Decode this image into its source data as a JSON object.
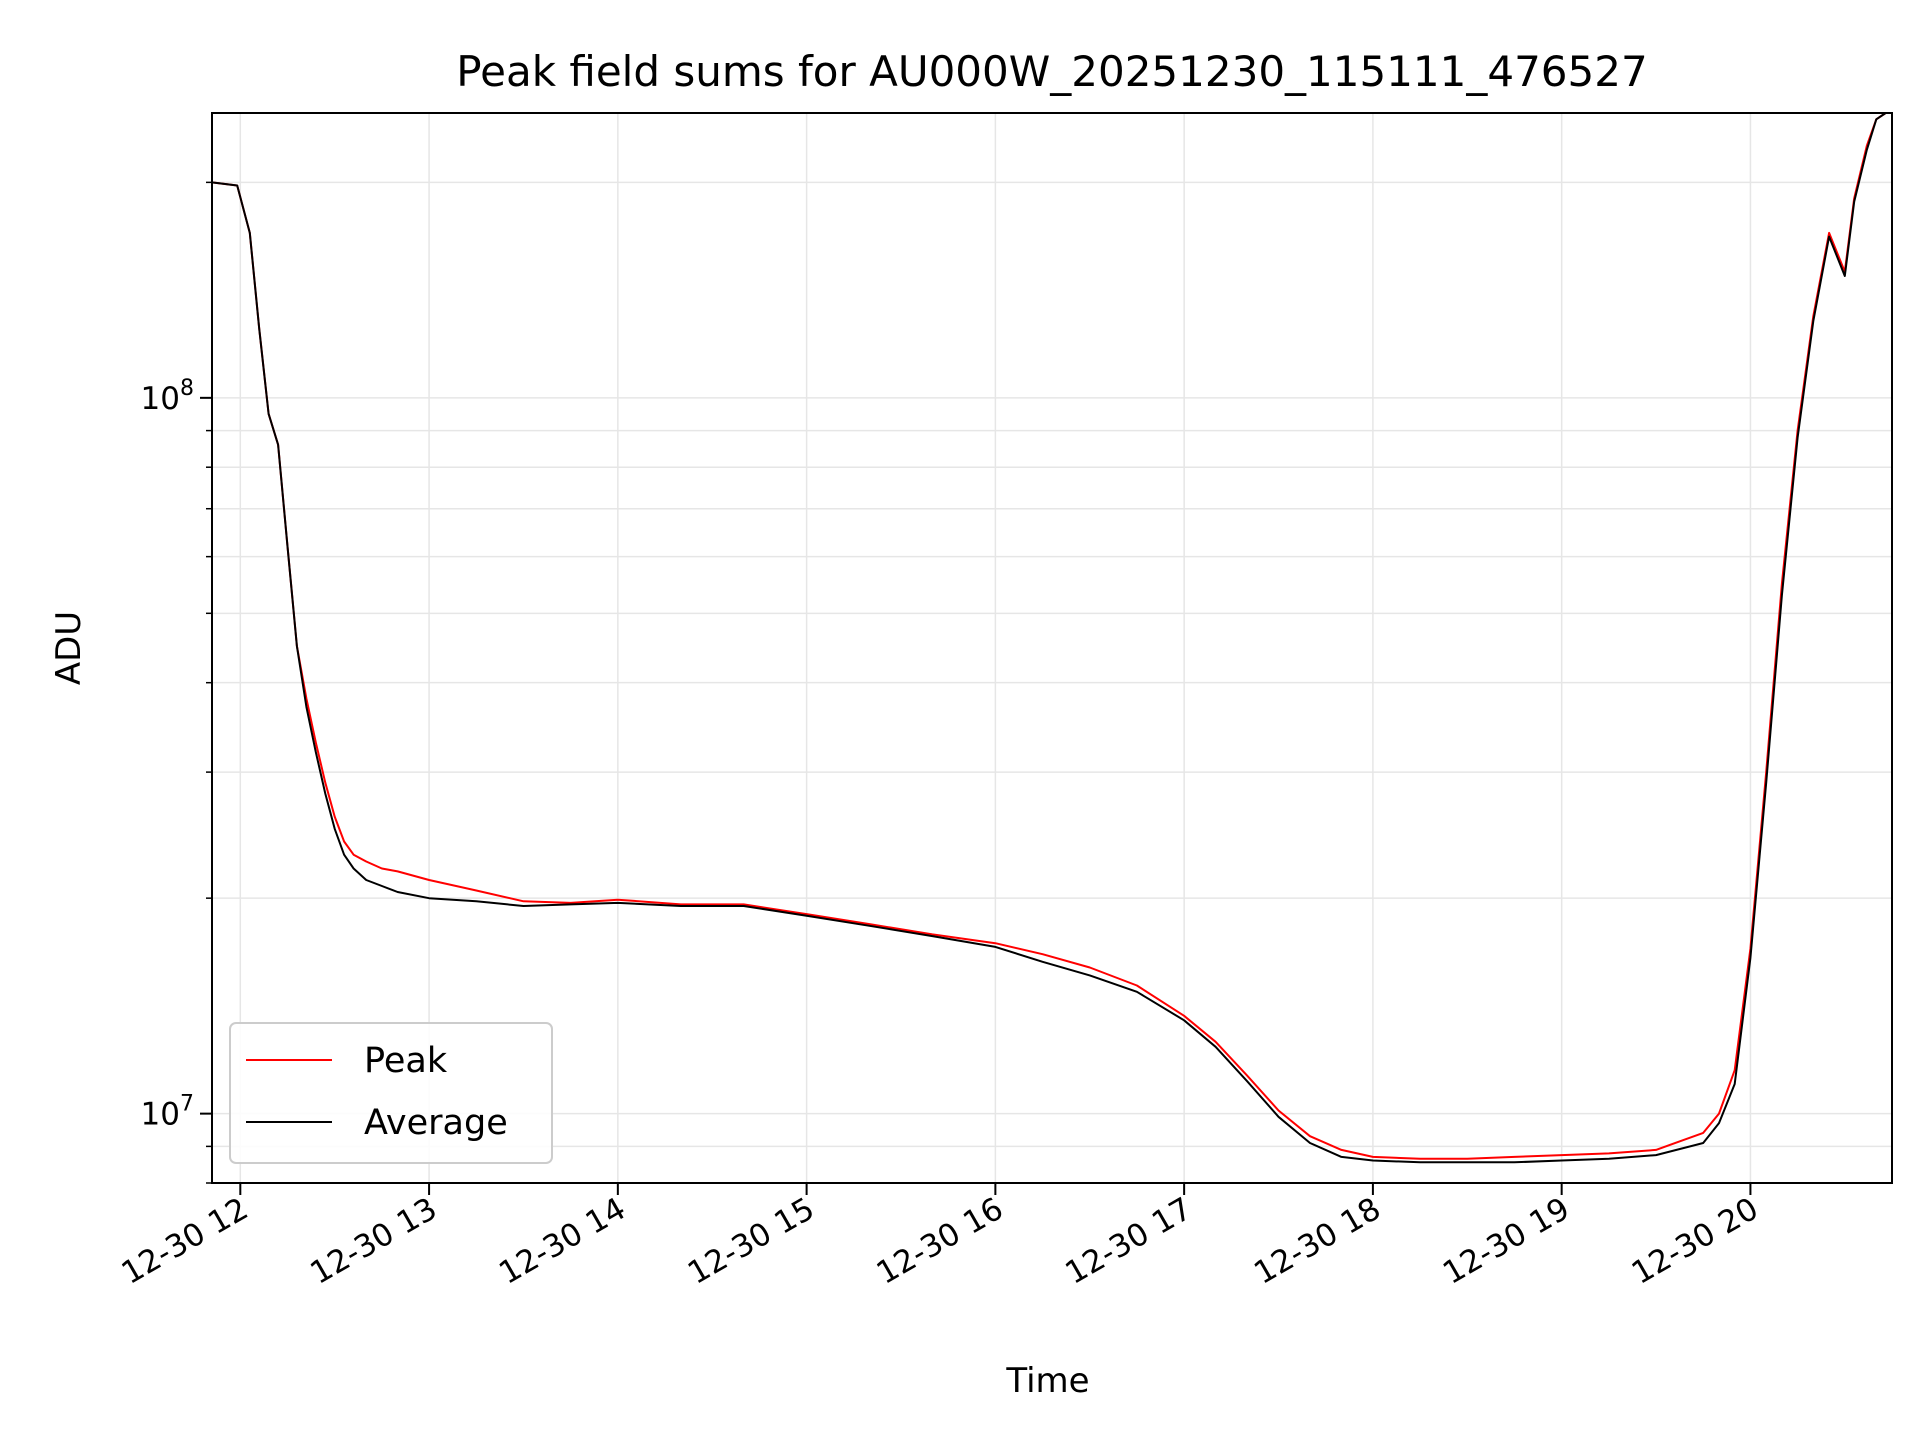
{
  "chart_data": {
    "type": "line",
    "title": "Peak field sums for AU000W_20251230_115111_476527",
    "xlabel": "Time",
    "ylabel": "ADU",
    "yscale": "log",
    "ylim": [
      8000000,
      250000000
    ],
    "xlim": [
      "2025-12-30 11:51",
      "2025-12-30 20:45"
    ],
    "grid": true,
    "legend_position": "lower-left",
    "x_ticks": [
      {
        "x": "2025-12-30 12:00",
        "label": "12-30 12"
      },
      {
        "x": "2025-12-30 13:00",
        "label": "12-30 13"
      },
      {
        "x": "2025-12-30 14:00",
        "label": "12-30 14"
      },
      {
        "x": "2025-12-30 15:00",
        "label": "12-30 15"
      },
      {
        "x": "2025-12-30 16:00",
        "label": "12-30 16"
      },
      {
        "x": "2025-12-30 17:00",
        "label": "12-30 17"
      },
      {
        "x": "2025-12-30 18:00",
        "label": "12-30 18"
      },
      {
        "x": "2025-12-30 19:00",
        "label": "12-30 19"
      },
      {
        "x": "2025-12-30 20:00",
        "label": "12-30 20"
      }
    ],
    "y_ticks": [
      {
        "value": 10000000,
        "base": "10",
        "exp": "7"
      },
      {
        "value": 100000000,
        "base": "10",
        "exp": "8"
      }
    ],
    "series": [
      {
        "name": "Peak",
        "color": "#ff0000",
        "x": [
          "2025-12-30 11:51",
          "2025-12-30 11:59",
          "2025-12-30 12:03",
          "2025-12-30 12:06",
          "2025-12-30 12:09",
          "2025-12-30 12:12",
          "2025-12-30 12:15",
          "2025-12-30 12:18",
          "2025-12-30 12:21",
          "2025-12-30 12:24",
          "2025-12-30 12:27",
          "2025-12-30 12:30",
          "2025-12-30 12:33",
          "2025-12-30 12:36",
          "2025-12-30 12:40",
          "2025-12-30 12:45",
          "2025-12-30 12:50",
          "2025-12-30 13:00",
          "2025-12-30 13:15",
          "2025-12-30 13:30",
          "2025-12-30 13:45",
          "2025-12-30 14:00",
          "2025-12-30 14:20",
          "2025-12-30 14:40",
          "2025-12-30 15:00",
          "2025-12-30 15:20",
          "2025-12-30 15:40",
          "2025-12-30 16:00",
          "2025-12-30 16:15",
          "2025-12-30 16:30",
          "2025-12-30 16:45",
          "2025-12-30 17:00",
          "2025-12-30 17:10",
          "2025-12-30 17:20",
          "2025-12-30 17:30",
          "2025-12-30 17:40",
          "2025-12-30 17:50",
          "2025-12-30 18:00",
          "2025-12-30 18:15",
          "2025-12-30 18:30",
          "2025-12-30 18:45",
          "2025-12-30 19:00",
          "2025-12-30 19:15",
          "2025-12-30 19:30",
          "2025-12-30 19:45",
          "2025-12-30 19:50",
          "2025-12-30 19:55",
          "2025-12-30 20:00",
          "2025-12-30 20:05",
          "2025-12-30 20:10",
          "2025-12-30 20:15",
          "2025-12-30 20:20",
          "2025-12-30 20:25",
          "2025-12-30 20:30",
          "2025-12-30 20:33",
          "2025-12-30 20:37",
          "2025-12-30 20:40",
          "2025-12-30 20:43"
        ],
        "y": [
          200000000,
          198000000,
          170000000,
          125000000,
          95000000,
          86000000,
          62000000,
          45000000,
          38000000,
          33000000,
          29000000,
          26000000,
          24000000,
          23000000,
          22500000,
          22000000,
          21800000,
          21200000,
          20500000,
          19800000,
          19700000,
          19900000,
          19600000,
          19600000,
          19000000,
          18400000,
          17800000,
          17300000,
          16700000,
          16000000,
          15100000,
          13700000,
          12600000,
          11300000,
          10100000,
          9300000,
          8900000,
          8700000,
          8650000,
          8650000,
          8700000,
          8750000,
          8800000,
          8900000,
          9400000,
          10000000,
          11500000,
          17000000,
          30000000,
          55000000,
          90000000,
          130000000,
          170000000,
          150000000,
          190000000,
          225000000,
          245000000,
          250000000
        ]
      },
      {
        "name": "Average",
        "color": "#000000",
        "x": [
          "2025-12-30 11:51",
          "2025-12-30 11:59",
          "2025-12-30 12:03",
          "2025-12-30 12:06",
          "2025-12-30 12:09",
          "2025-12-30 12:12",
          "2025-12-30 12:15",
          "2025-12-30 12:18",
          "2025-12-30 12:21",
          "2025-12-30 12:24",
          "2025-12-30 12:27",
          "2025-12-30 12:30",
          "2025-12-30 12:33",
          "2025-12-30 12:36",
          "2025-12-30 12:40",
          "2025-12-30 12:45",
          "2025-12-30 12:50",
          "2025-12-30 13:00",
          "2025-12-30 13:15",
          "2025-12-30 13:30",
          "2025-12-30 13:45",
          "2025-12-30 14:00",
          "2025-12-30 14:20",
          "2025-12-30 14:40",
          "2025-12-30 15:00",
          "2025-12-30 15:20",
          "2025-12-30 15:40",
          "2025-12-30 16:00",
          "2025-12-30 16:15",
          "2025-12-30 16:30",
          "2025-12-30 16:45",
          "2025-12-30 17:00",
          "2025-12-30 17:10",
          "2025-12-30 17:20",
          "2025-12-30 17:30",
          "2025-12-30 17:40",
          "2025-12-30 17:50",
          "2025-12-30 18:00",
          "2025-12-30 18:15",
          "2025-12-30 18:30",
          "2025-12-30 18:45",
          "2025-12-30 19:00",
          "2025-12-30 19:15",
          "2025-12-30 19:30",
          "2025-12-30 19:45",
          "2025-12-30 19:50",
          "2025-12-30 19:55",
          "2025-12-30 20:00",
          "2025-12-30 20:05",
          "2025-12-30 20:10",
          "2025-12-30 20:15",
          "2025-12-30 20:20",
          "2025-12-30 20:25",
          "2025-12-30 20:30",
          "2025-12-30 20:33",
          "2025-12-30 20:37",
          "2025-12-30 20:40",
          "2025-12-30 20:43"
        ],
        "y": [
          200000000,
          198000000,
          170000000,
          125000000,
          95000000,
          86000000,
          62000000,
          45000000,
          37000000,
          32000000,
          28000000,
          25000000,
          23000000,
          22000000,
          21200000,
          20800000,
          20400000,
          20000000,
          19800000,
          19500000,
          19600000,
          19700000,
          19500000,
          19500000,
          18900000,
          18300000,
          17700000,
          17100000,
          16300000,
          15600000,
          14800000,
          13500000,
          12400000,
          11100000,
          9900000,
          9100000,
          8700000,
          8600000,
          8550000,
          8550000,
          8550000,
          8600000,
          8650000,
          8750000,
          9100000,
          9700000,
          11000000,
          16500000,
          29000000,
          53000000,
          88000000,
          128000000,
          168000000,
          148000000,
          188000000,
          222000000,
          245000000,
          250000000
        ]
      }
    ]
  }
}
